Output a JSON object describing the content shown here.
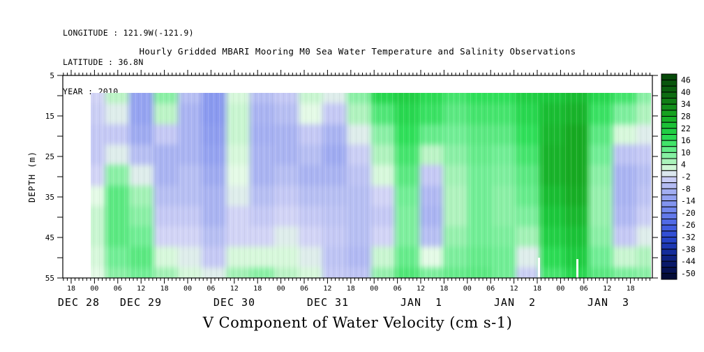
{
  "header": {
    "longitude": "LONGITUDE : 121.9W(-121.9)",
    "latitude": "LATITUDE : 36.8N",
    "year": "YEAR : 2010"
  },
  "title": "Hourly Gridded MBARI Mooring M0 Sea Water Temperature and Salinity Observations",
  "footer_title": "V Component of Water Velocity (cm s-1)",
  "axes": {
    "y_label": "DEPTH (m)",
    "y_tick_labels": [
      "5",
      "15",
      "25",
      "35",
      "45",
      "55"
    ],
    "y_ticks_all": [
      5,
      10,
      15,
      20,
      25,
      30,
      35,
      40,
      45,
      50,
      55
    ]
  },
  "palette": [
    {
      "value": -53,
      "color": "#030928"
    },
    {
      "value": -50,
      "color": "#050f48"
    },
    {
      "value": -44,
      "color": "#0c1c74"
    },
    {
      "value": -38,
      "color": "#1832a8"
    },
    {
      "value": -32,
      "color": "#2a48d0"
    },
    {
      "value": -26,
      "color": "#4862e4"
    },
    {
      "value": -20,
      "color": "#6a80ec"
    },
    {
      "value": -14,
      "color": "#8a9af0"
    },
    {
      "value": -8,
      "color": "#aab4f2"
    },
    {
      "value": -2,
      "color": "#d2d4f6"
    },
    {
      "value": 1,
      "color": "#e4fae6"
    },
    {
      "value": 4,
      "color": "#bcf4c6"
    },
    {
      "value": 10,
      "color": "#72ee96"
    },
    {
      "value": 16,
      "color": "#30e05a"
    },
    {
      "value": 22,
      "color": "#1cc83c"
    },
    {
      "value": 28,
      "color": "#17aa22"
    },
    {
      "value": 34,
      "color": "#128618"
    },
    {
      "value": 40,
      "color": "#0c6410"
    },
    {
      "value": 46,
      "color": "#08500c"
    },
    {
      "value": 49,
      "color": "#064408"
    }
  ],
  "chart_data": {
    "type": "heatmap",
    "title": "Hourly Gridded MBARI Mooring M0 Sea Water Temperature and Salinity Observations",
    "variable": "V Component of Water Velocity (cm s-1)",
    "units": "cm s-1",
    "location": {
      "longitude": "121.9W(-121.9)",
      "latitude": "36.8N",
      "year": "2010"
    },
    "ylabel": "DEPTH (m)",
    "ylim": [
      5,
      55
    ],
    "data_top_depth_m": 10,
    "x_hour_labels": [
      "18",
      "00",
      "06",
      "12",
      "18",
      "00",
      "06",
      "12",
      "18",
      "00",
      "06",
      "12",
      "18",
      "00",
      "06",
      "12",
      "18",
      "00",
      "06",
      "12",
      "18",
      "00",
      "06",
      "12",
      "18"
    ],
    "x_date_labels": [
      "DEC 28",
      "DEC 29",
      "DEC 30",
      "DEC 31",
      "JAN  1",
      "JAN  2",
      "JAN  3"
    ],
    "colorbar": {
      "min": -50,
      "max": 46,
      "label_step": 6,
      "segment_step": 3,
      "labels": [
        "46",
        "40",
        "34",
        "28",
        "22",
        "16",
        "10",
        "4",
        "-2",
        "-8",
        "-14",
        "-20",
        "-26",
        "-32",
        "-38",
        "-44",
        "-50"
      ]
    },
    "depths_m": [
      10,
      15,
      20,
      25,
      30,
      35,
      40,
      45,
      50,
      55
    ],
    "times": [
      "DEC 29 00:00",
      "DEC 29 06:00",
      "DEC 29 12:00",
      "DEC 29 18:00",
      "DEC 30 00:00",
      "DEC 30 06:00",
      "DEC 30 12:00",
      "DEC 30 18:00",
      "DEC 31 00:00",
      "DEC 31 06:00",
      "DEC 31 12:00",
      "DEC 31 18:00",
      "JAN 1 00:00",
      "JAN 1 06:00",
      "JAN 1 12:00",
      "JAN 1 18:00",
      "JAN 2 00:00",
      "JAN 2 06:00",
      "JAN 2 12:00",
      "JAN 2 18:00",
      "JAN 3 00:00",
      "JAN 3 06:00",
      "JAN 3 12:00",
      "JAN 3 18:00"
    ],
    "values_by_time_column": [
      [
        -2,
        -3,
        -4,
        -4,
        -2,
        1,
        3,
        3,
        2,
        1
      ],
      [
        4,
        0,
        -4,
        0,
        8,
        12,
        12,
        12,
        10,
        8
      ],
      [
        -12,
        -12,
        -10,
        -6,
        0,
        6,
        8,
        10,
        12,
        10
      ],
      [
        8,
        4,
        -4,
        -8,
        -8,
        -6,
        -4,
        -2,
        2,
        6
      ],
      [
        -6,
        -8,
        -8,
        -8,
        -6,
        -6,
        -4,
        -2,
        0,
        2
      ],
      [
        -14,
        -14,
        -13,
        -12,
        -10,
        -8,
        -8,
        -6,
        -4,
        0
      ],
      [
        2,
        3,
        3,
        2,
        1,
        0,
        -2,
        -2,
        2,
        6
      ],
      [
        -6,
        -8,
        -9,
        -8,
        -8,
        -6,
        -4,
        -2,
        2,
        8
      ],
      [
        -4,
        -6,
        -8,
        -8,
        -6,
        -4,
        -2,
        0,
        2,
        4
      ],
      [
        3,
        1,
        -4,
        -6,
        -8,
        -6,
        -4,
        -2,
        0,
        2
      ],
      [
        0,
        -4,
        -8,
        -10,
        -8,
        -6,
        -5,
        -4,
        -5,
        -4
      ],
      [
        8,
        5,
        0,
        -3,
        -5,
        -6,
        -6,
        -6,
        -7,
        -5
      ],
      [
        18,
        13,
        8,
        5,
        2,
        -2,
        -4,
        -2,
        3,
        7
      ],
      [
        20,
        18,
        16,
        14,
        12,
        10,
        9,
        9,
        11,
        13
      ],
      [
        17,
        15,
        11,
        4,
        -4,
        -7,
        -8,
        -6,
        1,
        9
      ],
      [
        14,
        12,
        10,
        8,
        6,
        5,
        5,
        7,
        9,
        11
      ],
      [
        16,
        14,
        12,
        11,
        10,
        10,
        10,
        10,
        11,
        12
      ],
      [
        16,
        14,
        12,
        10,
        9,
        8,
        8,
        9,
        10,
        10
      ],
      [
        20,
        18,
        16,
        14,
        12,
        11,
        9,
        6,
        0,
        -3
      ],
      [
        22,
        24,
        25,
        26,
        26,
        24,
        22,
        20,
        17,
        14
      ],
      [
        24,
        26,
        28,
        28,
        28,
        27,
        25,
        23,
        21,
        18
      ],
      [
        18,
        15,
        12,
        10,
        8,
        7,
        7,
        8,
        10,
        12
      ],
      [
        14,
        9,
        2,
        -5,
        -8,
        -8,
        -7,
        -4,
        3,
        9
      ],
      [
        8,
        5,
        0,
        -4,
        -6,
        -5,
        -3,
        0,
        5,
        8
      ]
    ]
  }
}
